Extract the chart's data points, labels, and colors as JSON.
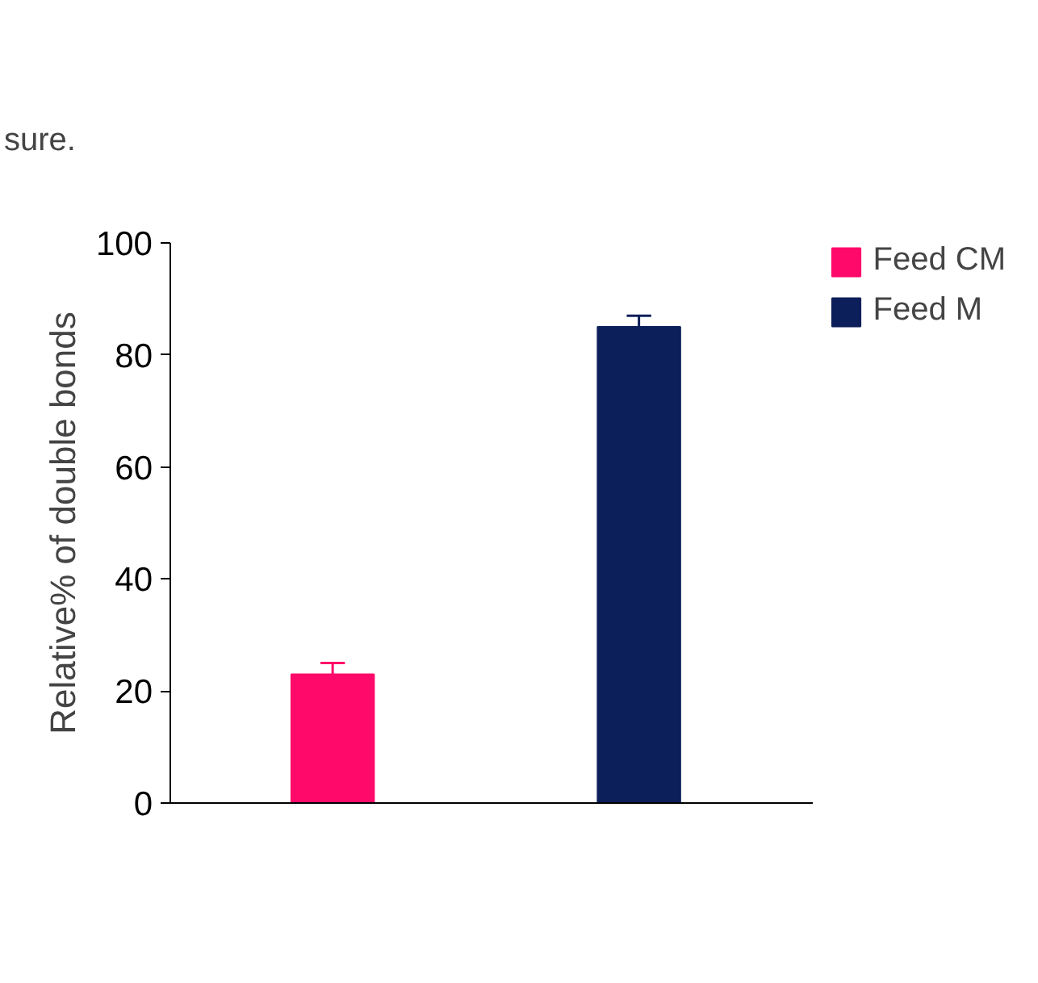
{
  "chart_data": {
    "type": "bar",
    "ylabel": "Relative% of double bonds",
    "categories": [
      null,
      null
    ],
    "series": [
      {
        "name": "Feed CM",
        "color": "#ff0a6a",
        "values": [
          23,
          null
        ],
        "errors": [
          2,
          null
        ]
      },
      {
        "name": "Feed M",
        "color": "#0c1f5a",
        "values": [
          null,
          85
        ],
        "errors": [
          null,
          2
        ]
      }
    ],
    "ylim": [
      0,
      100
    ],
    "yticks": [
      0,
      20,
      40,
      60,
      80,
      100
    ],
    "tick_labels": "y",
    "legend": "top right",
    "annotations": [
      "sure."
    ]
  }
}
